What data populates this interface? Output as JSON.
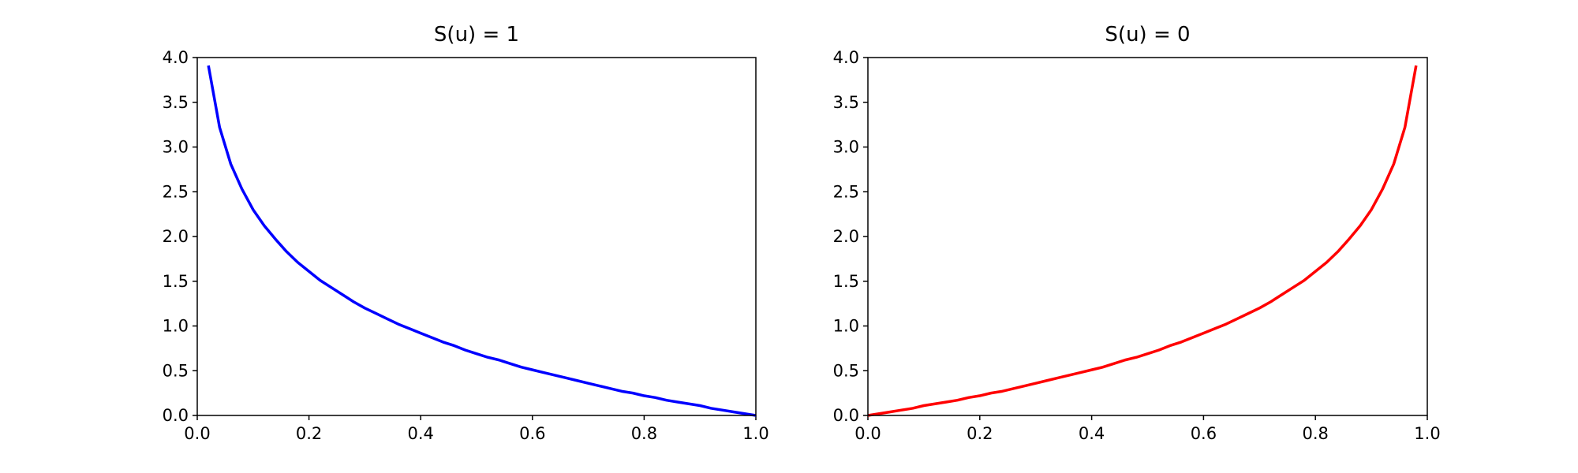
{
  "chart_data": [
    {
      "type": "line",
      "title": "S(u) = 1",
      "x": [
        0.02,
        0.04,
        0.06,
        0.08,
        0.1,
        0.12,
        0.14,
        0.16,
        0.18,
        0.2,
        0.22,
        0.24,
        0.26,
        0.28,
        0.3,
        0.32,
        0.34,
        0.36,
        0.38,
        0.4,
        0.42,
        0.44,
        0.46,
        0.48,
        0.5,
        0.52,
        0.54,
        0.56,
        0.58,
        0.6,
        0.62,
        0.64,
        0.66,
        0.68,
        0.7,
        0.72,
        0.74,
        0.76,
        0.78,
        0.8,
        0.82,
        0.84,
        0.86,
        0.88,
        0.9,
        0.92,
        0.94,
        0.96,
        0.98,
        1.0
      ],
      "series": [
        {
          "color": "#0000ff",
          "values": [
            3.91,
            3.22,
            2.81,
            2.53,
            2.3,
            2.12,
            1.97,
            1.83,
            1.71,
            1.61,
            1.51,
            1.43,
            1.35,
            1.27,
            1.2,
            1.14,
            1.08,
            1.02,
            0.97,
            0.92,
            0.87,
            0.82,
            0.78,
            0.73,
            0.69,
            0.65,
            0.62,
            0.58,
            0.54,
            0.51,
            0.48,
            0.45,
            0.42,
            0.39,
            0.36,
            0.33,
            0.3,
            0.27,
            0.25,
            0.22,
            0.2,
            0.17,
            0.15,
            0.13,
            0.11,
            0.08,
            0.06,
            0.04,
            0.02,
            0.0
          ]
        }
      ],
      "xlim": [
        0,
        1
      ],
      "ylim": [
        0,
        4
      ],
      "xticks": [
        {
          "value": 0,
          "label": "0.0"
        },
        0.2,
        0.4,
        0.6,
        0.8,
        {
          "value": 1,
          "label": "1.0"
        }
      ],
      "yticks": [
        {
          "value": 0,
          "label": "0.0"
        },
        0.5,
        {
          "value": 1,
          "label": "1.0"
        },
        1.5,
        {
          "value": 2,
          "label": "2.0"
        },
        2.5,
        {
          "value": 3,
          "label": "3.0"
        },
        3.5,
        {
          "value": 4,
          "label": "4.0"
        }
      ]
    },
    {
      "type": "line",
      "title": "S(u) = 0",
      "x": [
        0.0,
        0.02,
        0.04,
        0.06,
        0.08,
        0.1,
        0.12,
        0.14,
        0.16,
        0.18,
        0.2,
        0.22,
        0.24,
        0.26,
        0.28,
        0.3,
        0.32,
        0.34,
        0.36,
        0.38,
        0.4,
        0.42,
        0.44,
        0.46,
        0.48,
        0.5,
        0.52,
        0.54,
        0.56,
        0.58,
        0.6,
        0.62,
        0.64,
        0.66,
        0.68,
        0.7,
        0.72,
        0.74,
        0.76,
        0.78,
        0.8,
        0.82,
        0.84,
        0.86,
        0.88,
        0.9,
        0.92,
        0.94,
        0.96,
        0.98
      ],
      "series": [
        {
          "color": "#ff0000",
          "values": [
            0.0,
            0.02,
            0.04,
            0.06,
            0.08,
            0.11,
            0.13,
            0.15,
            0.17,
            0.2,
            0.22,
            0.25,
            0.27,
            0.3,
            0.33,
            0.36,
            0.39,
            0.42,
            0.45,
            0.48,
            0.51,
            0.54,
            0.58,
            0.62,
            0.65,
            0.69,
            0.73,
            0.78,
            0.82,
            0.87,
            0.92,
            0.97,
            1.02,
            1.08,
            1.14,
            1.2,
            1.27,
            1.35,
            1.43,
            1.51,
            1.61,
            1.71,
            1.83,
            1.97,
            2.12,
            2.3,
            2.53,
            2.81,
            3.22,
            3.91
          ]
        }
      ],
      "xlim": [
        0,
        1
      ],
      "ylim": [
        0,
        4
      ],
      "xticks": [
        {
          "value": 0,
          "label": "0.0"
        },
        0.2,
        0.4,
        0.6,
        0.8,
        {
          "value": 1,
          "label": "1.0"
        }
      ],
      "yticks": [
        {
          "value": 0,
          "label": "0.0"
        },
        0.5,
        {
          "value": 1,
          "label": "1.0"
        },
        1.5,
        {
          "value": 2,
          "label": "2.0"
        },
        2.5,
        {
          "value": 3,
          "label": "3.0"
        },
        3.5,
        {
          "value": 4,
          "label": "4.0"
        }
      ]
    }
  ]
}
